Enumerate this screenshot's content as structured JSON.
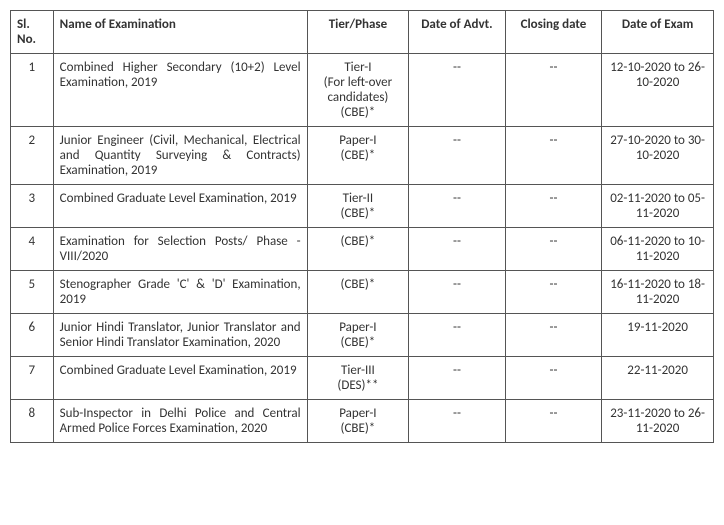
{
  "table": {
    "columns": [
      {
        "label": "Sl. No.",
        "align": "left"
      },
      {
        "label": "Name of Examination",
        "align": "left"
      },
      {
        "label": "Tier/Phase",
        "align": "center"
      },
      {
        "label": "Date of Advt.",
        "align": "center"
      },
      {
        "label": "Closing date",
        "align": "center"
      },
      {
        "label": "Date of Exam",
        "align": "center"
      }
    ],
    "rows": [
      {
        "sl": "1",
        "name": "Combined Higher Secondary (10+2) Level Examination, 2019",
        "tier": "Tier-I\n(For left-over candidates)\n(CBE)*",
        "advt": "--",
        "close": "--",
        "exam": "12-10-2020 to 26-10-2020"
      },
      {
        "sl": "2",
        "name": "Junior Engineer (Civil, Mechanical, Electrical and Quantity Surveying & Contracts) Examination, 2019",
        "tier": "Paper-I\n(CBE)*",
        "advt": "--",
        "close": "--",
        "exam": "27-10-2020 to 30-10-2020"
      },
      {
        "sl": "3",
        "name": "Combined Graduate Level Examination, 2019",
        "tier": "Tier-II\n(CBE)*",
        "advt": "--",
        "close": "--",
        "exam": "02-11-2020 to 05-11-2020"
      },
      {
        "sl": "4",
        "name": "Examination for Selection Posts/ Phase - VIII/2020",
        "tier": "(CBE)*",
        "advt": "--",
        "close": "--",
        "exam": "06-11-2020 to 10-11-2020"
      },
      {
        "sl": "5",
        "name": "Stenographer Grade 'C' & 'D' Examination, 2019",
        "tier": "(CBE)*",
        "advt": "--",
        "close": "--",
        "exam": "16-11-2020 to 18-11-2020"
      },
      {
        "sl": "6",
        "name": "Junior Hindi Translator, Junior Translator and Senior Hindi Translator Examination, 2020",
        "tier": "Paper-I\n(CBE)*",
        "advt": "--",
        "close": "--",
        "exam": "19-11-2020"
      },
      {
        "sl": "7",
        "name": "Combined Graduate Level Examination, 2019",
        "tier": "Tier-III\n(DES)**",
        "advt": "--",
        "close": "--",
        "exam": "22-11-2020"
      },
      {
        "sl": "8",
        "name": "Sub-Inspector in Delhi Police and Central Armed Police Forces Examination, 2020",
        "tier": "Paper-I\n(CBE)*",
        "advt": "--",
        "close": "--",
        "exam": "23-11-2020 to 26-11-2020"
      }
    ]
  }
}
